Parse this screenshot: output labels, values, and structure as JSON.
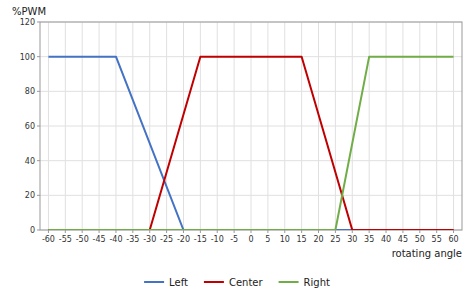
{
  "chart_data": {
    "type": "line",
    "xlabel": "rotating angle",
    "ylabel": "%PWM",
    "xlim": [
      -62.5,
      62.5
    ],
    "ylim": [
      0,
      120
    ],
    "xticks": [
      -60,
      -55,
      -50,
      -45,
      -40,
      -35,
      -30,
      -25,
      -20,
      -15,
      -10,
      -5,
      0,
      5,
      10,
      15,
      20,
      25,
      30,
      35,
      40,
      45,
      50,
      55,
      60
    ],
    "yticks": [
      0,
      20,
      40,
      60,
      80,
      100,
      120
    ],
    "grid": true,
    "legend": "bottom",
    "series": [
      {
        "name": "Left",
        "color": "#4472C4",
        "x": [
          -60,
          -40,
          -20,
          60
        ],
        "values": [
          100,
          100,
          0,
          0
        ]
      },
      {
        "name": "Center",
        "color": "#C00000",
        "x": [
          -60,
          -30,
          -15,
          15,
          30,
          60
        ],
        "values": [
          0,
          0,
          100,
          100,
          0,
          0
        ]
      },
      {
        "name": "Right",
        "color": "#70AD47",
        "x": [
          -60,
          25,
          35,
          60
        ],
        "values": [
          0,
          0,
          100,
          100
        ]
      }
    ]
  }
}
